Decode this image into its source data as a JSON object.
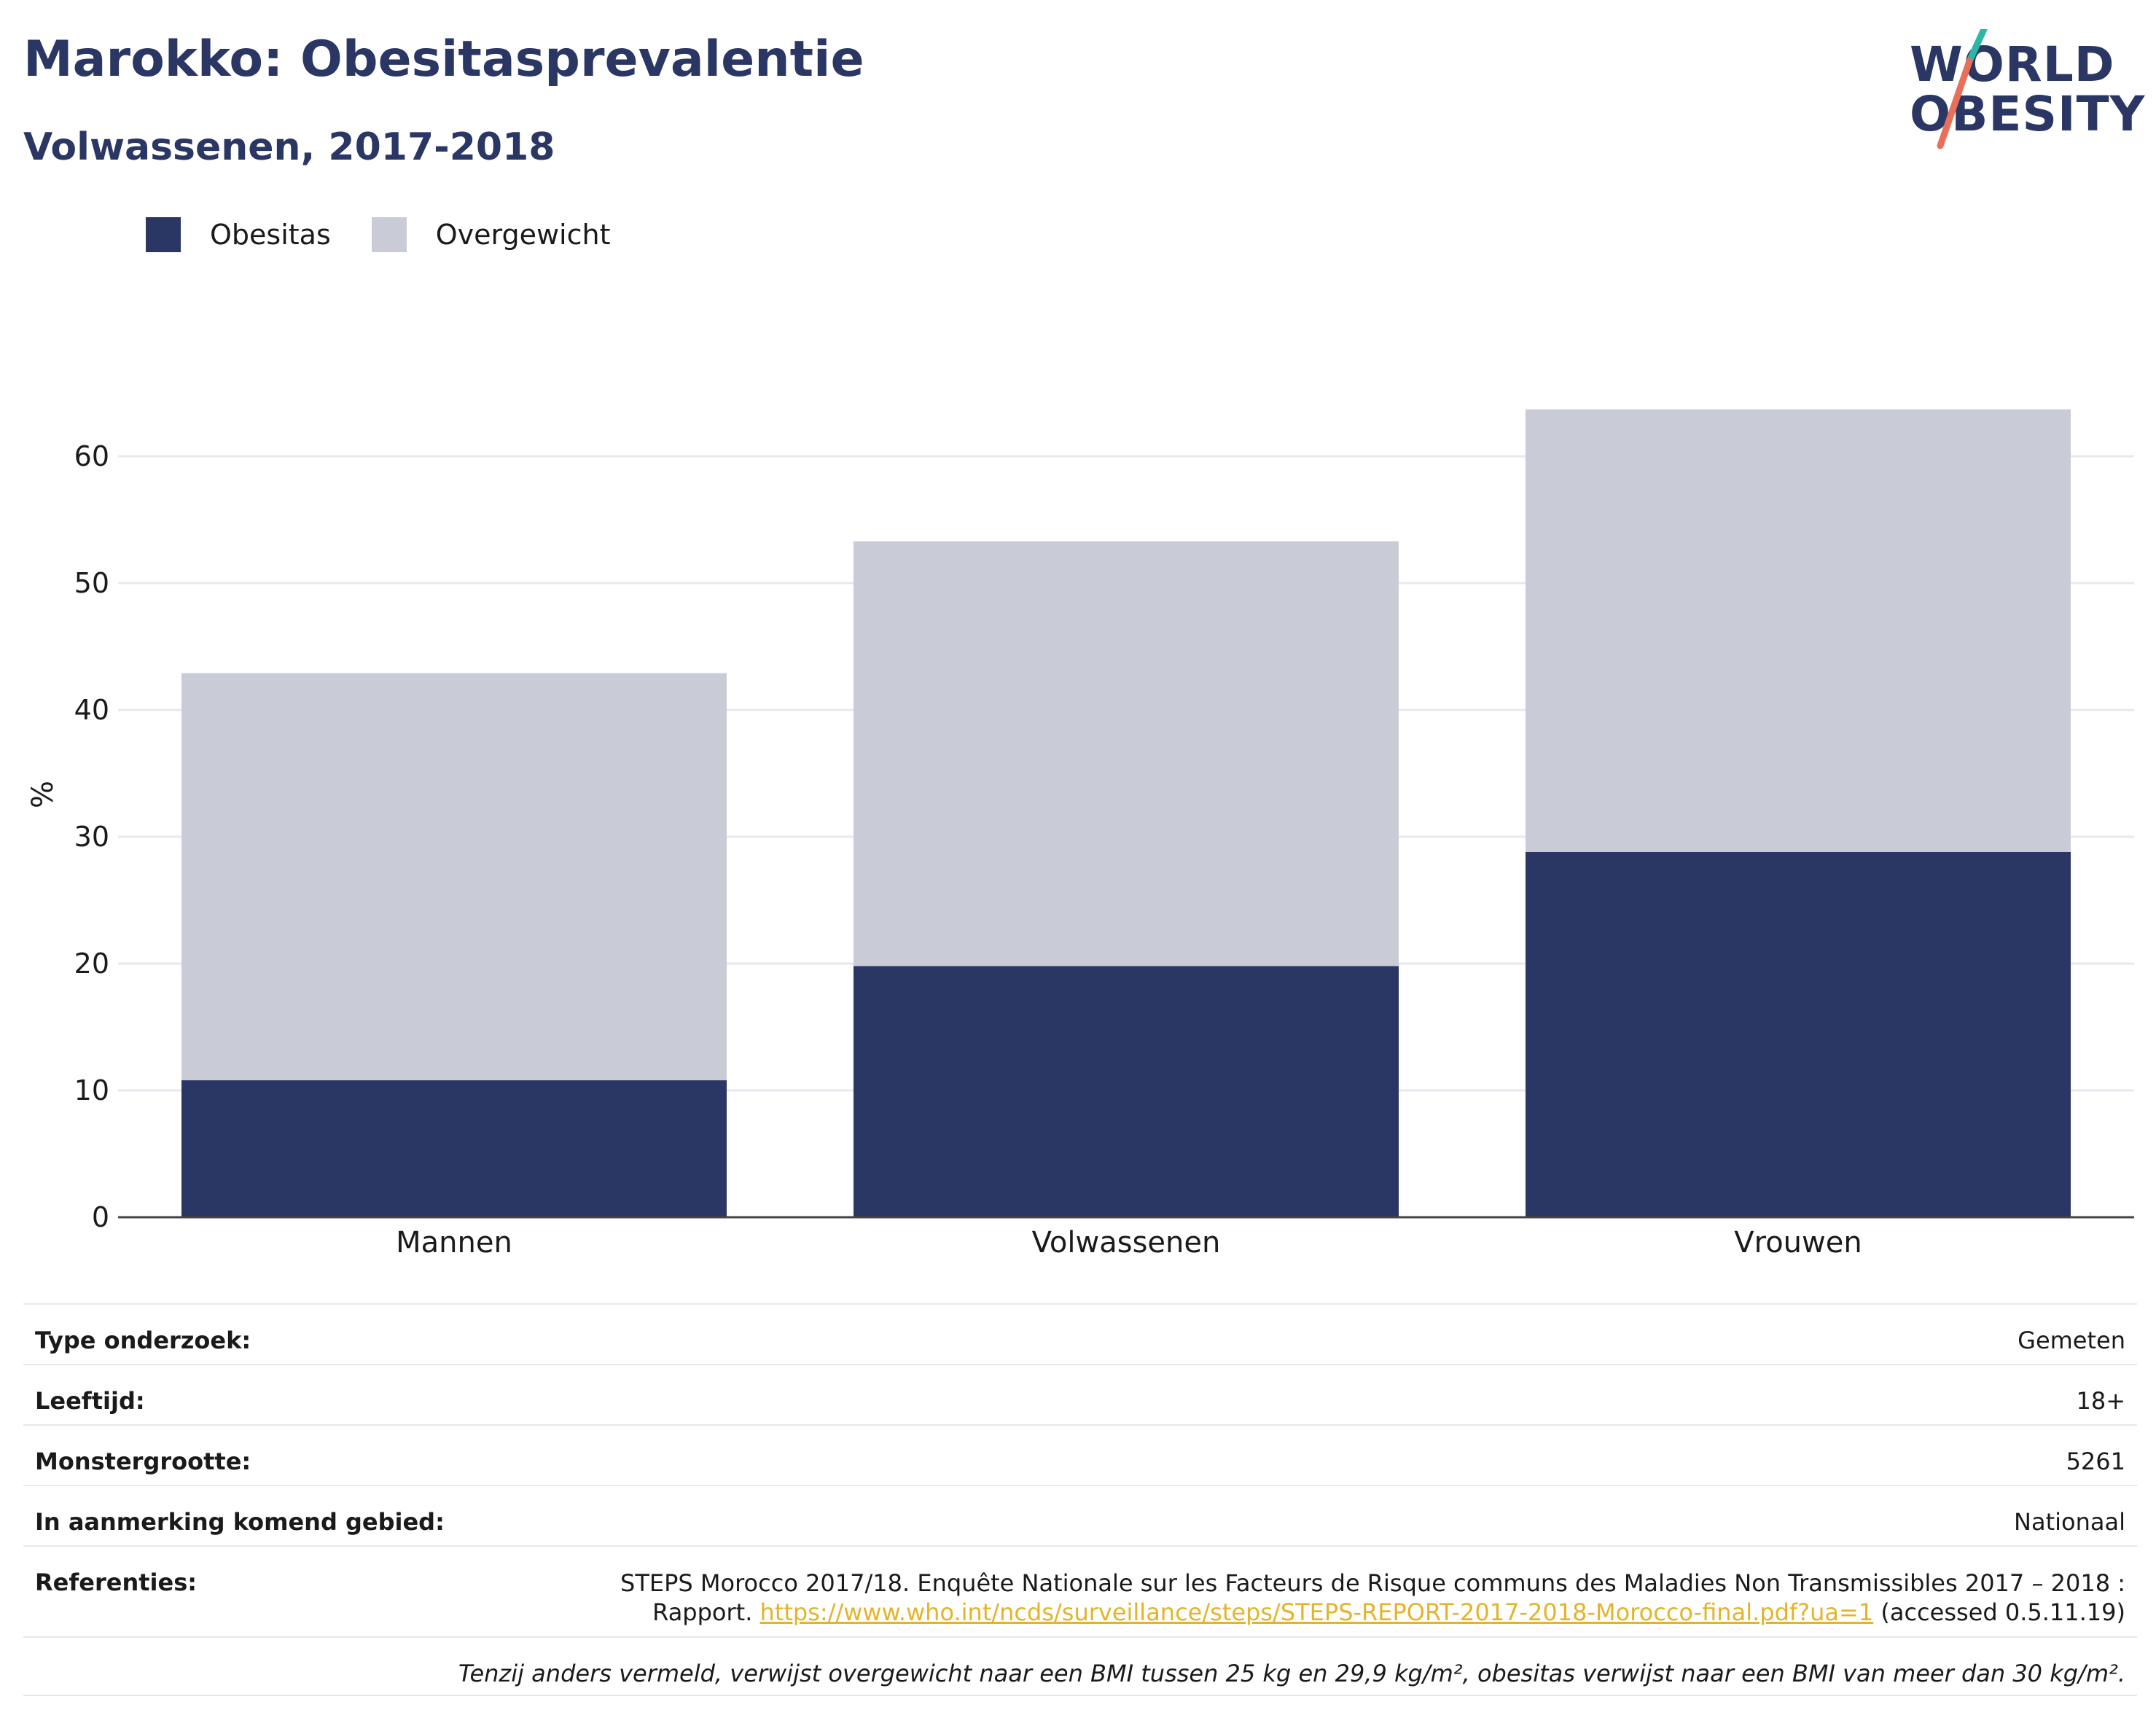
{
  "header": {
    "title": "Marokko: Obesitasprevalentie",
    "subtitle": "Volwassenen, 2017-2018"
  },
  "logo": {
    "line1": "WORLD",
    "line2": "OBESITY"
  },
  "colors": {
    "obesity": "#2a3663",
    "overweight": "#c9cbd6",
    "accent_teal": "#2db5a8",
    "accent_coral": "#e8705a",
    "link": "#e3b42b"
  },
  "chart_data": {
    "type": "bar",
    "stacked": true,
    "categories": [
      "Mannen",
      "Volwassenen",
      "Vrouwen"
    ],
    "series": [
      {
        "name": "Obesitas",
        "values": [
          10.8,
          19.8,
          28.8
        ]
      },
      {
        "name": "Overgewicht",
        "values": [
          32.1,
          33.5,
          34.9
        ]
      }
    ],
    "ylabel": "%",
    "ylim": [
      0,
      65
    ],
    "yticks": [
      0,
      10,
      20,
      30,
      40,
      50,
      60
    ],
    "grid": true,
    "legend": "top-left"
  },
  "info": {
    "rows": [
      {
        "label": "Type onderzoek:",
        "value": "Gemeten"
      },
      {
        "label": "Leeftijd:",
        "value": "18+"
      },
      {
        "label": "Monstergrootte:",
        "value": "5261"
      },
      {
        "label": "In aanmerking komend gebied:",
        "value": "Nationaal"
      }
    ],
    "references_label": "Referenties:",
    "references_text1": "STEPS Morocco 2017/18. Enquête Nationale sur les Facteurs de Risque communs des Maladies Non Transmissibles 2017 – 2018 :",
    "references_text2": "Rapport. ",
    "references_link": "https://www.who.int/ncds/surveillance/steps/STEPS-REPORT-2017-2018-Morocco-final.pdf?ua=1",
    "references_suffix": " (accessed 0.5.11.19)",
    "footnote": "Tenzij anders vermeld, verwijst overgewicht naar een BMI tussen 25 kg en 29,9 kg/m², obesitas verwijst naar een BMI van meer dan 30 kg/m²."
  }
}
